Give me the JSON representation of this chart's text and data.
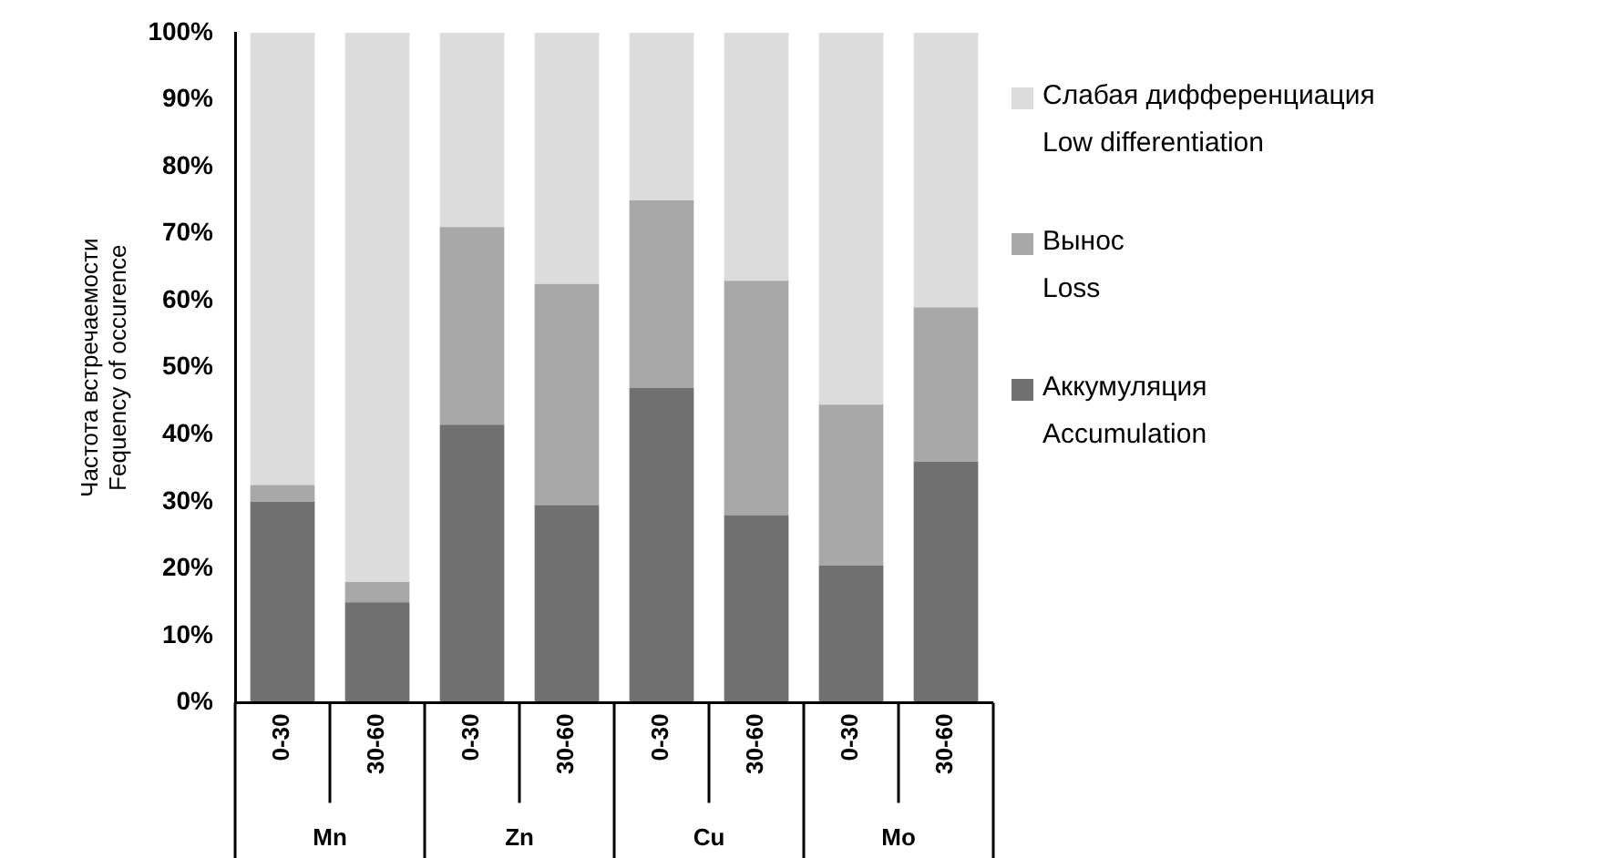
{
  "chart_data": {
    "type": "bar",
    "stacked": true,
    "ylabel": "Частота встречаемости\nFequency of occurence",
    "categories": [
      "0-30",
      "30-60",
      "0-30",
      "30-60",
      "0-30",
      "30-60",
      "0-30",
      "30-60"
    ],
    "annotations": [
      "Mn",
      "Zn",
      "Cu",
      "Mo"
    ],
    "series": [
      {
        "name": "Аккумуляция\nAccumulation",
        "color": "#707070",
        "values": [
          30,
          15,
          41.5,
          29.5,
          47,
          28,
          20.5,
          36
        ]
      },
      {
        "name": "Вынос\nLoss",
        "color": "#a8a8a8",
        "values": [
          2.5,
          3,
          29.5,
          33,
          28,
          35,
          24,
          23
        ]
      },
      {
        "name": "Слабая дифференциация\nLow differentiation",
        "color": "#dcdcdc",
        "values": [
          67.5,
          82,
          29,
          37.5,
          25,
          37,
          55.5,
          41
        ]
      }
    ],
    "ylim": [
      0,
      100
    ],
    "yticks": [
      {
        "value": 0,
        "label": "0%"
      },
      {
        "value": 10,
        "label": "10%"
      },
      {
        "value": 20,
        "label": "20%"
      },
      {
        "value": 30,
        "label": "30%"
      },
      {
        "value": 40,
        "label": "40%"
      },
      {
        "value": 50,
        "label": "50%"
      },
      {
        "value": 60,
        "label": "60%"
      },
      {
        "value": 70,
        "label": "70%"
      },
      {
        "value": 80,
        "label": "80%"
      },
      {
        "value": 90,
        "label": "90%"
      },
      {
        "value": 100,
        "label": "100%"
      }
    ],
    "grid": false,
    "legend": "right"
  }
}
